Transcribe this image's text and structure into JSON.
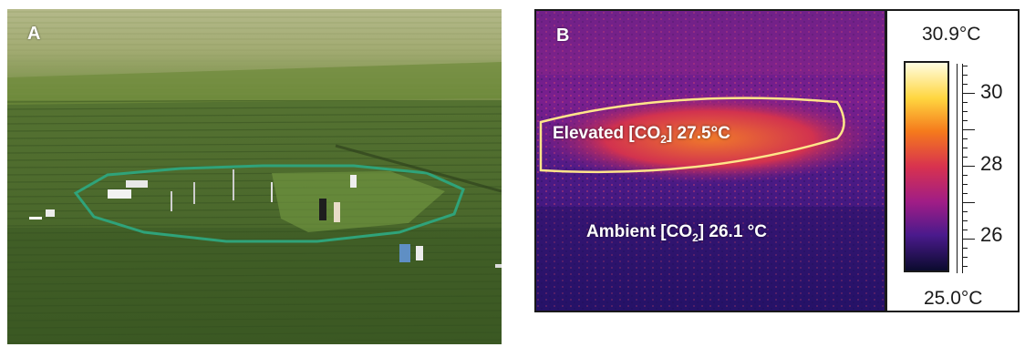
{
  "panel_a": {
    "letter": "A"
  },
  "panel_b": {
    "letter": "B",
    "elevated_prefix": "Elevated [CO",
    "elevated_sub": "2",
    "elevated_suffix": "] 27.5°C",
    "ambient_prefix": "Ambient [CO",
    "ambient_sub": "2",
    "ambient_suffix": "] 26.1 °C"
  },
  "scale": {
    "max_label": "30.9°C",
    "min_label": "25.0°C",
    "ticks": [
      "30",
      "28",
      "26"
    ],
    "colors": [
      "#fffde0",
      "#ffd640",
      "#f57a1c",
      "#d8324f",
      "#a01d86",
      "#4a1a8c",
      "#0b0b2e"
    ]
  }
}
